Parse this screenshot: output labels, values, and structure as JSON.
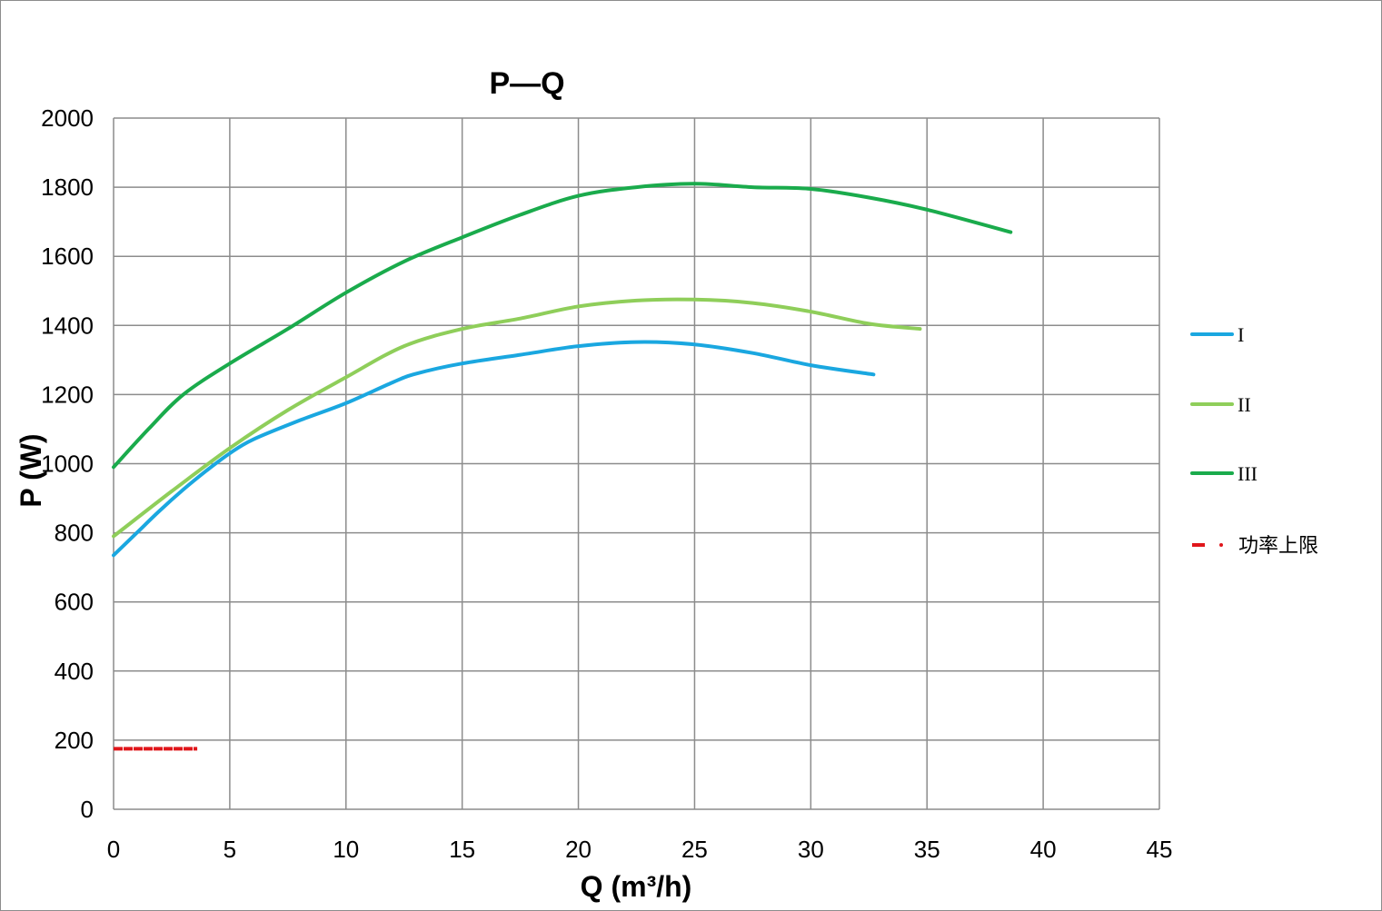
{
  "chart_data": {
    "type": "line",
    "title": "P—Q",
    "xlabel": "Q (m³/h)",
    "ylabel": "P (W)",
    "xlim": [
      0,
      45
    ],
    "ylim": [
      0,
      2000
    ],
    "xticks": [
      "0",
      "5",
      "10",
      "15",
      "20",
      "25",
      "30",
      "35",
      "40",
      "45"
    ],
    "yticks": [
      "0",
      "200",
      "400",
      "600",
      "800",
      "1000",
      "1200",
      "1400",
      "1600",
      "1800",
      "2000"
    ],
    "grid": true,
    "legend_position": "right",
    "series": [
      {
        "name": "I",
        "color": "#1aa7e0",
        "style": "solid",
        "x": [
          0,
          1,
          2,
          3,
          4,
          5,
          6,
          8,
          10,
          12,
          13,
          15,
          17.5,
          20,
          22.5,
          25,
          27.5,
          30,
          32.7
        ],
        "y": [
          735,
          800,
          865,
          925,
          980,
          1030,
          1070,
          1125,
          1175,
          1235,
          1260,
          1290,
          1315,
          1340,
          1352,
          1345,
          1320,
          1285,
          1258
        ]
      },
      {
        "name": "II",
        "color": "#8fce5a",
        "style": "solid",
        "x": [
          0,
          2.5,
          5,
          7.5,
          10,
          12.5,
          15,
          17.5,
          20,
          22.5,
          25,
          27.5,
          30,
          32.5,
          34.7
        ],
        "y": [
          790,
          920,
          1045,
          1155,
          1250,
          1340,
          1390,
          1420,
          1455,
          1472,
          1475,
          1465,
          1440,
          1405,
          1390
        ]
      },
      {
        "name": "III",
        "color": "#1aab4c",
        "style": "solid",
        "x": [
          0,
          1.5,
          3,
          5,
          7.5,
          10,
          12.5,
          15,
          17.5,
          20,
          22.5,
          25,
          27.5,
          30,
          32.5,
          35,
          38.6
        ],
        "y": [
          990,
          1100,
          1200,
          1290,
          1390,
          1495,
          1585,
          1655,
          1720,
          1775,
          1800,
          1810,
          1800,
          1795,
          1770,
          1735,
          1670
        ]
      },
      {
        "name": "功率上限",
        "color": "#e0161b",
        "style": "dashed",
        "x": [
          0,
          3.6
        ],
        "y": [
          175,
          175
        ]
      }
    ]
  }
}
